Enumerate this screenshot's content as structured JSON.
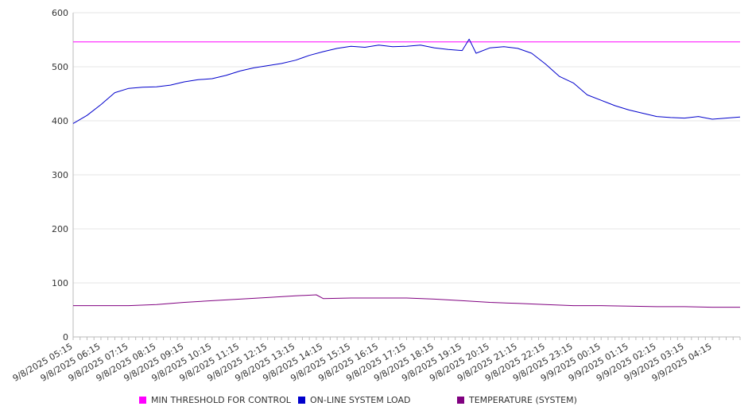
{
  "chart_data": {
    "type": "line",
    "title": "",
    "xlabel": "",
    "ylabel": "",
    "ylim": [
      0,
      600
    ],
    "yticks": [
      0,
      100,
      200,
      300,
      400,
      500,
      600
    ],
    "xlim": [
      "9/8/2025 05:15",
      "9/9/2025 05:15"
    ],
    "xtick_labels": [
      "9/8/2025 05:15",
      "9/8/2025 06:15",
      "9/8/2025 07:15",
      "9/8/2025 08:15",
      "9/8/2025 09:15",
      "9/8/2025 10:15",
      "9/8/2025 11:15",
      "9/8/2025 12:15",
      "9/8/2025 13:15",
      "9/8/2025 14:15",
      "9/8/2025 15:15",
      "9/8/2025 16:15",
      "9/8/2025 17:15",
      "9/8/2025 18:15",
      "9/8/2025 19:15",
      "9/8/2025 20:15",
      "9/8/2025 21:15",
      "9/8/2025 22:15",
      "9/8/2025 23:15",
      "9/9/2025 00:15",
      "9/9/2025 01:15",
      "9/9/2025 02:15",
      "9/9/2025 03:15",
      "9/9/2025 04:15"
    ],
    "grid": true,
    "legend_position": "bottom",
    "series": [
      {
        "name": "MIN THRESHOLD FOR CONTROL",
        "color": "#ff00ff",
        "x": [
          "9/8/2025 05:15",
          "9/9/2025 05:15"
        ],
        "values": [
          546,
          546
        ]
      },
      {
        "name": "ON-LINE SYSTEM LOAD",
        "color": "#0000cc",
        "x": [
          "9/8/2025 05:15",
          "9/8/2025 05:45",
          "9/8/2025 06:15",
          "9/8/2025 06:45",
          "9/8/2025 07:15",
          "9/8/2025 07:45",
          "9/8/2025 08:15",
          "9/8/2025 08:45",
          "9/8/2025 09:15",
          "9/8/2025 09:45",
          "9/8/2025 10:15",
          "9/8/2025 10:45",
          "9/8/2025 11:15",
          "9/8/2025 11:45",
          "9/8/2025 12:15",
          "9/8/2025 12:45",
          "9/8/2025 13:15",
          "9/8/2025 13:45",
          "9/8/2025 14:15",
          "9/8/2025 14:45",
          "9/8/2025 15:15",
          "9/8/2025 15:45",
          "9/8/2025 16:15",
          "9/8/2025 16:45",
          "9/8/2025 17:15",
          "9/8/2025 17:45",
          "9/8/2025 18:15",
          "9/8/2025 18:45",
          "9/8/2025 19:15",
          "9/8/2025 19:30",
          "9/8/2025 19:45",
          "9/8/2025 20:15",
          "9/8/2025 20:45",
          "9/8/2025 21:15",
          "9/8/2025 21:45",
          "9/8/2025 22:15",
          "9/8/2025 22:45",
          "9/8/2025 23:15",
          "9/8/2025 23:45",
          "9/9/2025 00:15",
          "9/9/2025 00:45",
          "9/9/2025 01:15",
          "9/9/2025 01:45",
          "9/9/2025 02:15",
          "9/9/2025 02:45",
          "9/9/2025 03:15",
          "9/9/2025 03:45",
          "9/9/2025 04:15",
          "9/9/2025 04:45",
          "9/9/2025 05:15"
        ],
        "values": [
          395,
          410,
          430,
          452,
          460,
          462,
          463,
          466,
          472,
          476,
          478,
          484,
          492,
          498,
          502,
          506,
          512,
          521,
          528,
          534,
          538,
          536,
          540,
          537,
          538,
          540,
          535,
          532,
          530,
          551,
          525,
          535,
          537,
          534,
          525,
          505,
          482,
          470,
          448,
          438,
          428,
          420,
          414,
          408,
          406,
          405,
          408,
          403,
          405,
          407
        ]
      },
      {
        "name": "TEMPERATURE (SYSTEM)",
        "color": "#800080",
        "x": [
          "9/8/2025 05:15",
          "9/8/2025 06:15",
          "9/8/2025 07:15",
          "9/8/2025 08:15",
          "9/8/2025 09:15",
          "9/8/2025 10:15",
          "9/8/2025 11:15",
          "9/8/2025 12:15",
          "9/8/2025 13:15",
          "9/8/2025 14:00",
          "9/8/2025 14:15",
          "9/8/2025 15:15",
          "9/8/2025 16:15",
          "9/8/2025 17:15",
          "9/8/2025 18:15",
          "9/8/2025 19:15",
          "9/8/2025 20:15",
          "9/8/2025 21:15",
          "9/8/2025 22:15",
          "9/8/2025 23:15",
          "9/9/2025 00:15",
          "9/9/2025 01:15",
          "9/9/2025 02:15",
          "9/9/2025 03:15",
          "9/9/2025 04:15",
          "9/9/2025 05:15"
        ],
        "values": [
          58,
          58,
          58,
          60,
          64,
          67,
          70,
          73,
          76,
          78,
          71,
          72,
          72,
          72,
          70,
          67,
          64,
          62,
          60,
          58,
          58,
          57,
          56,
          56,
          55,
          55
        ]
      }
    ]
  }
}
